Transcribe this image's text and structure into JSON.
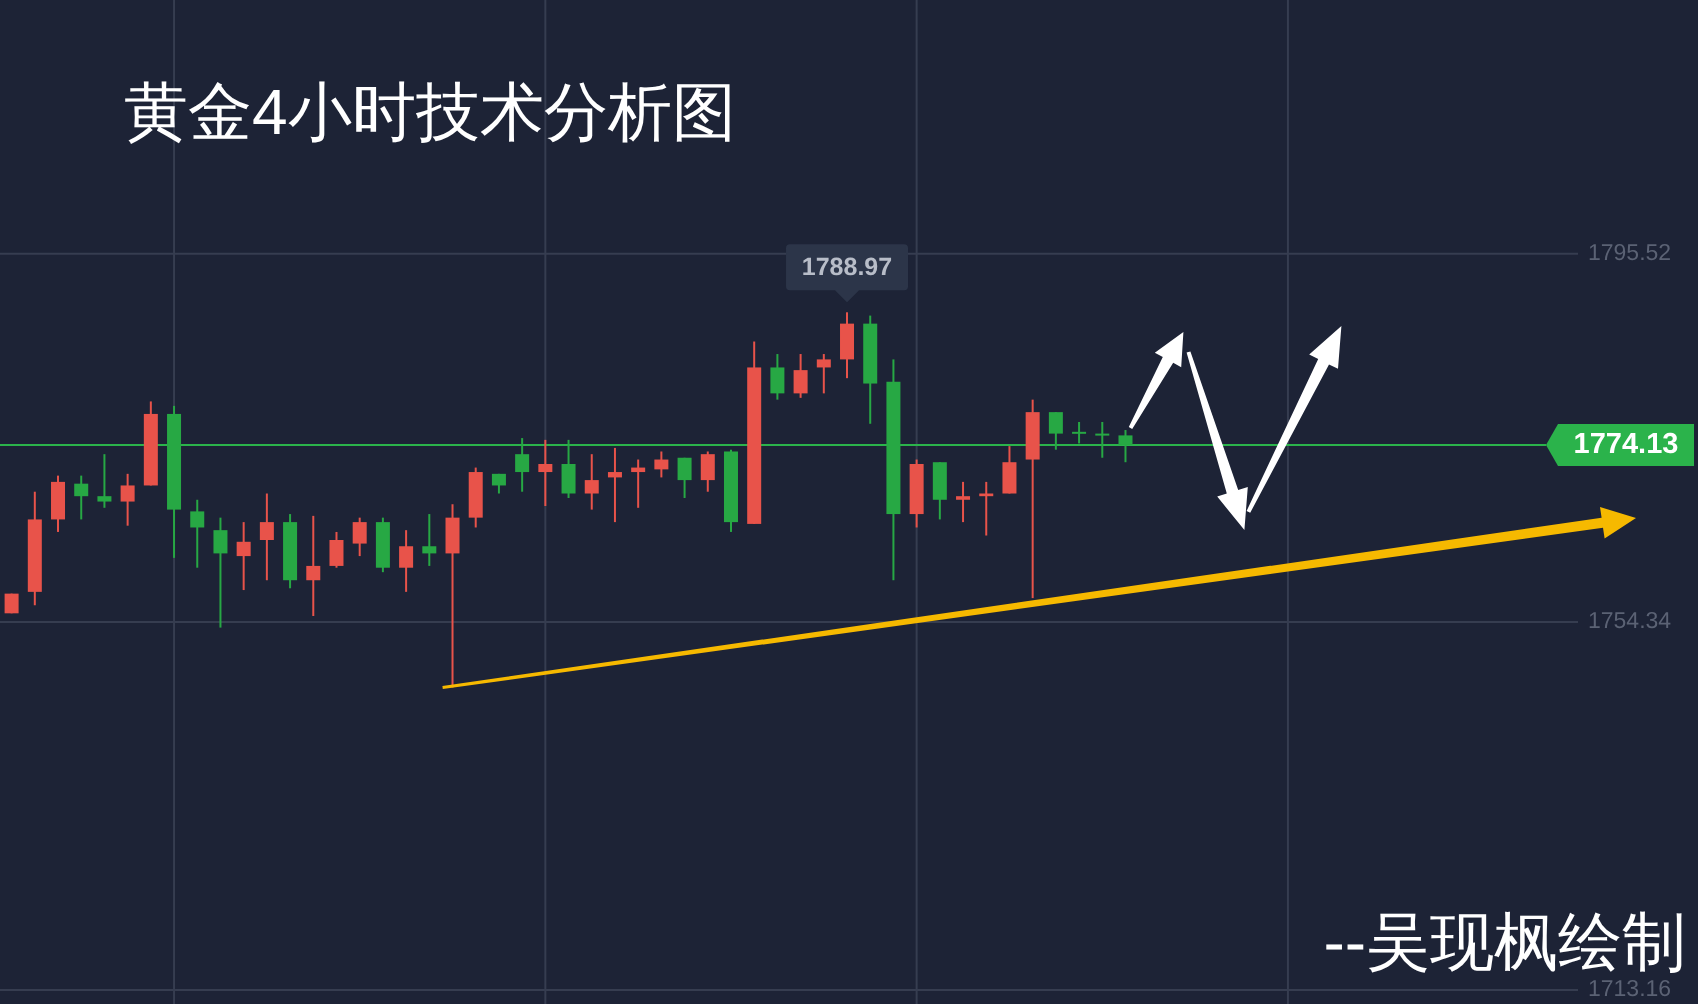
{
  "chart_data": {
    "type": "candlestick",
    "title": "黄金4小时技术分析图",
    "categories": [
      null,
      null,
      null,
      null,
      null,
      null,
      null,
      null,
      null,
      null,
      null,
      null,
      null,
      null,
      null,
      null,
      null,
      null,
      null,
      null,
      null,
      null,
      null,
      null,
      null,
      null,
      null,
      null,
      null,
      null,
      null,
      null,
      null,
      null,
      null,
      null,
      null,
      null,
      null,
      null,
      null,
      null,
      null,
      null,
      null,
      null,
      null,
      null,
      null,
      null,
      null,
      null,
      null,
      null,
      null,
      null,
      null,
      null,
      null,
      null,
      null,
      null,
      null,
      null,
      null,
      null,
      null,
      null
    ],
    "ohlc": [
      [
        1755.3,
        1757.5,
        1755.3,
        1757.5
      ],
      [
        1757.7,
        1768.9,
        1756.2,
        1765.8
      ],
      [
        1765.8,
        1770.7,
        1764.4,
        1770.0
      ],
      [
        1769.8,
        1770.7,
        1765.8,
        1768.4
      ],
      [
        1768.4,
        1773.1,
        1767.1,
        1767.8
      ],
      [
        1767.8,
        1770.9,
        1765.1,
        1769.6
      ],
      [
        1769.6,
        1779.0,
        1769.6,
        1777.6
      ],
      [
        1777.6,
        1778.5,
        1761.5,
        1766.9
      ],
      [
        1766.7,
        1768.0,
        1760.4,
        1764.9
      ],
      [
        1764.6,
        1766.0,
        1753.7,
        1762.0
      ],
      [
        1761.7,
        1765.5,
        1757.9,
        1763.3
      ],
      [
        1763.5,
        1768.7,
        1759.0,
        1765.5
      ],
      [
        1765.5,
        1766.4,
        1758.1,
        1759.0
      ],
      [
        1759.0,
        1766.2,
        1755.0,
        1760.6
      ],
      [
        1760.6,
        1764.4,
        1760.4,
        1763.5
      ],
      [
        1763.1,
        1766.0,
        1761.7,
        1765.5
      ],
      [
        1765.5,
        1766.0,
        1759.9,
        1760.4
      ],
      [
        1760.4,
        1764.6,
        1757.7,
        1762.8
      ],
      [
        1762.8,
        1766.4,
        1760.6,
        1762.0
      ],
      [
        1762.0,
        1767.5,
        1747.0,
        1766.0
      ],
      [
        1766.0,
        1771.6,
        1764.9,
        1771.1
      ],
      [
        1770.9,
        1770.9,
        1768.7,
        1769.6
      ],
      [
        1773.1,
        1774.9,
        1768.9,
        1771.1
      ],
      [
        1771.1,
        1774.7,
        1767.3,
        1772.0
      ],
      [
        1772.0,
        1774.7,
        1768.2,
        1768.7
      ],
      [
        1768.7,
        1773.1,
        1766.9,
        1770.2
      ],
      [
        1770.5,
        1773.8,
        1765.5,
        1771.1
      ],
      [
        1771.1,
        1772.5,
        1767.1,
        1771.6
      ],
      [
        1771.4,
        1773.4,
        1770.5,
        1772.5
      ],
      [
        1772.7,
        1772.7,
        1768.2,
        1770.2
      ],
      [
        1770.2,
        1773.4,
        1768.9,
        1773.1
      ],
      [
        1773.4,
        1773.6,
        1764.4,
        1765.5
      ],
      [
        1765.3,
        1785.7,
        1765.3,
        1782.8
      ],
      [
        1782.8,
        1784.3,
        1779.2,
        1779.9
      ],
      [
        1779.9,
        1784.3,
        1779.4,
        1782.5
      ],
      [
        1782.8,
        1784.3,
        1779.9,
        1783.7
      ],
      [
        1783.7,
        1788.97,
        1781.6,
        1787.7
      ],
      [
        1787.7,
        1788.6,
        1776.5,
        1781.0
      ],
      [
        1781.2,
        1783.7,
        1759.0,
        1766.4
      ],
      [
        1766.4,
        1772.5,
        1764.9,
        1772.0
      ],
      [
        1772.2,
        1772.2,
        1765.8,
        1768.0
      ],
      [
        1768.0,
        1770.0,
        1765.5,
        1768.4
      ],
      [
        1768.4,
        1770.0,
        1764.0,
        1768.7
      ],
      [
        1768.7,
        1774.0,
        1768.7,
        1772.2
      ],
      [
        1772.5,
        1779.2,
        1757.0,
        1777.8
      ],
      [
        1777.8,
        1777.8,
        1773.6,
        1775.4
      ],
      [
        1775.6,
        1776.7,
        1774.3,
        1775.4
      ],
      [
        1775.4,
        1776.7,
        1772.7,
        1775.2
      ],
      [
        1775.2,
        1775.8,
        1772.2,
        1774.13
      ],
      null,
      null,
      null,
      null,
      null,
      null,
      null,
      null,
      null,
      null,
      null,
      null,
      null,
      null,
      null,
      null,
      null,
      null,
      null
    ],
    "colors": [
      "#e8534a",
      "#e8534a",
      "#e8534a",
      "#27a844",
      "#27a844",
      "#e8534a",
      "#e8534a",
      "#27a844",
      "#27a844",
      "#27a844",
      "#e8534a",
      "#e8534a",
      "#27a844",
      "#e8534a",
      "#e8534a",
      "#e8534a",
      "#27a844",
      "#e8534a",
      "#27a844",
      "#e8534a",
      "#e8534a",
      "#27a844",
      "#27a844",
      "#e8534a",
      "#27a844",
      "#e8534a",
      "#e8534a",
      "#e8534a",
      "#e8534a",
      "#27a844",
      "#e8534a",
      "#27a844",
      "#e8534a",
      "#27a844",
      "#e8534a",
      "#e8534a",
      "#e8534a",
      "#27a844",
      "#27a844",
      "#e8534a",
      "#27a844",
      "#e8534a",
      "#e8534a",
      "#e8534a",
      "#e8534a",
      "#27a844",
      "#27a844",
      "#27a844",
      "#27a844",
      null,
      null,
      null,
      null,
      null,
      null,
      null,
      null,
      null,
      null,
      null,
      null,
      null,
      null,
      null,
      null,
      null,
      null,
      null
    ],
    "ylim": [
      1711.6,
      1823.9
    ],
    "yticks": [
      1795.52,
      1754.34,
      1713.16
    ],
    "grid": true,
    "ref_lines": [
      {
        "axis": "y",
        "value": 1774.13,
        "label": "1774.13",
        "color": "#2bb34b"
      }
    ],
    "annotations": [
      "1788.97",
      "--吴现枫绘制"
    ]
  }
}
